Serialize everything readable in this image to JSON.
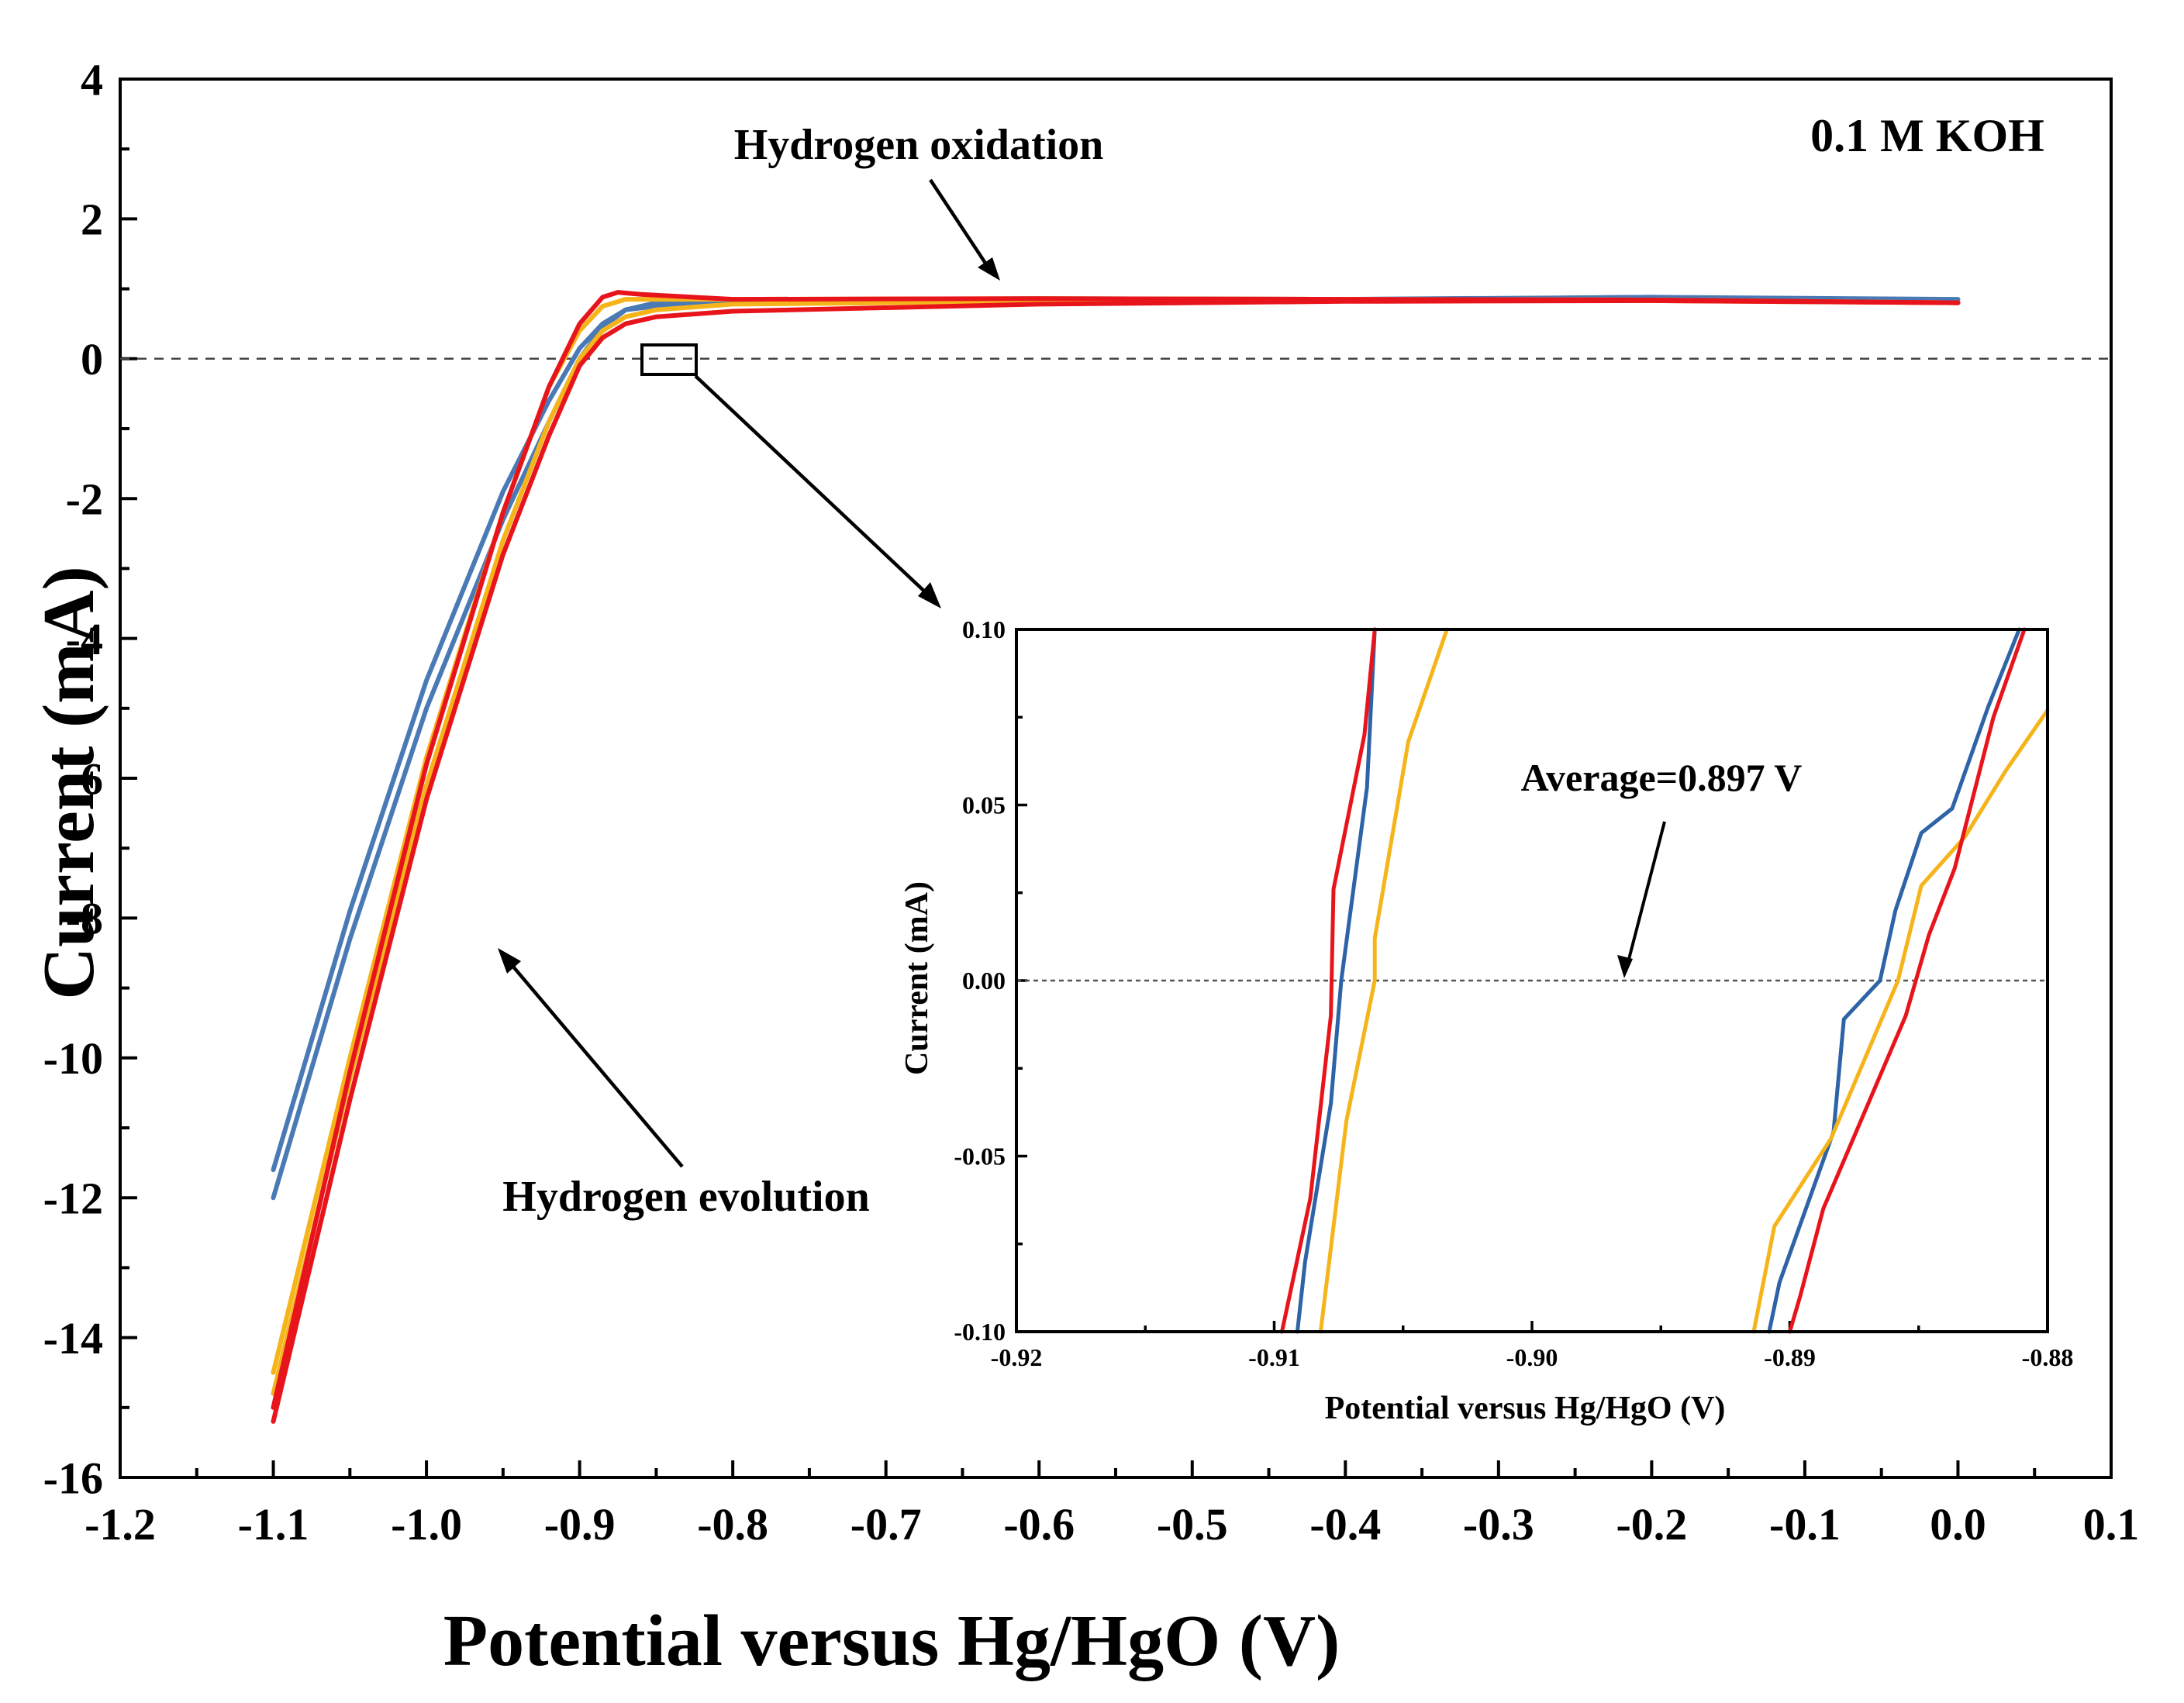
{
  "colors": {
    "blue": "#4a7ab5",
    "orange": "#f5b41a",
    "red": "#e8141c",
    "inset_blue": "#2e63a7",
    "axis": "#000000",
    "zero_line": "#444444"
  },
  "chart_data": [
    {
      "type": "line",
      "id": "main",
      "title": "",
      "xlabel": "Potential versus Hg/HgO (V)",
      "ylabel": "Current (mA)",
      "xlim": [
        -1.2,
        0.1
      ],
      "ylim": [
        -16,
        4
      ],
      "xticks": [
        -1.2,
        -1.1,
        -1.0,
        -0.9,
        -0.8,
        -0.7,
        -0.6,
        -0.5,
        -0.4,
        -0.3,
        -0.2,
        -0.1,
        0.0,
        0.1
      ],
      "xtick_labels": [
        "-1.2",
        "-1.1",
        "-1.0",
        "-0.9",
        "-0.8",
        "-0.7",
        "-0.6",
        "-0.5",
        "-0.4",
        "-0.3",
        "-0.2",
        "-0.1",
        "0.0",
        "0.1"
      ],
      "yticks": [
        4,
        2,
        0,
        -2,
        -4,
        -6,
        -8,
        -10,
        -12,
        -14,
        -16
      ],
      "ytick_labels": [
        "4",
        "2",
        "0",
        "-2",
        "-4",
        "-6",
        "-8",
        "-10",
        "-12",
        "-14",
        "-16"
      ],
      "zero_line": 0,
      "annotations": {
        "electrolyte": "0.1 M KOH",
        "oxidation": "Hydrogen oxidation",
        "evolution": "Hydrogen evolution"
      },
      "series": [
        {
          "name": "blue-forward",
          "color": "blue",
          "x": [
            -1.1,
            -1.05,
            -1.0,
            -0.95,
            -0.92,
            -0.9,
            -0.885,
            -0.87,
            -0.85,
            -0.8,
            -0.6,
            -0.4,
            -0.2,
            0.0
          ],
          "y": [
            -12.0,
            -8.3,
            -5.0,
            -2.3,
            -0.9,
            0.0,
            0.45,
            0.7,
            0.8,
            0.84,
            0.86,
            0.85,
            0.88,
            0.85
          ]
        },
        {
          "name": "blue-reverse",
          "color": "blue",
          "x": [
            -1.1,
            -1.05,
            -1.0,
            -0.95,
            -0.92,
            -0.9,
            -0.885,
            -0.87,
            -0.85,
            -0.8,
            -0.6,
            -0.4,
            -0.2,
            0.0
          ],
          "y": [
            -11.6,
            -7.9,
            -4.6,
            -1.9,
            -0.6,
            0.15,
            0.5,
            0.7,
            0.75,
            0.82,
            0.85,
            0.84,
            0.88,
            0.8
          ]
        },
        {
          "name": "orange-forward",
          "color": "orange",
          "x": [
            -1.1,
            -1.05,
            -1.0,
            -0.95,
            -0.92,
            -0.9,
            -0.885,
            -0.87,
            -0.85,
            -0.8,
            -0.6,
            -0.4,
            -0.2,
            0.0
          ],
          "y": [
            -14.8,
            -10.3,
            -6.1,
            -2.6,
            -0.9,
            0.0,
            0.4,
            0.6,
            0.7,
            0.78,
            0.82,
            0.84,
            0.83,
            0.8
          ]
        },
        {
          "name": "orange-reverse",
          "color": "orange",
          "x": [
            -1.1,
            -1.05,
            -1.0,
            -0.95,
            -0.92,
            -0.9,
            -0.885,
            -0.87,
            -0.85,
            -0.8,
            -0.6,
            -0.4,
            -0.2,
            0.0
          ],
          "y": [
            -14.5,
            -10.0,
            -5.7,
            -2.2,
            -0.4,
            0.4,
            0.75,
            0.85,
            0.85,
            0.85,
            0.86,
            0.85,
            0.84,
            0.8
          ]
        },
        {
          "name": "red-forward",
          "color": "red",
          "x": [
            -1.1,
            -1.05,
            -1.0,
            -0.95,
            -0.92,
            -0.9,
            -0.885,
            -0.87,
            -0.85,
            -0.8,
            -0.6,
            -0.4,
            -0.2,
            0.0
          ],
          "y": [
            -15.2,
            -10.6,
            -6.3,
            -2.8,
            -1.1,
            -0.1,
            0.3,
            0.5,
            0.6,
            0.68,
            0.78,
            0.82,
            0.83,
            0.8
          ]
        },
        {
          "name": "red-reverse",
          "color": "red",
          "x": [
            -1.1,
            -1.05,
            -1.0,
            -0.95,
            -0.92,
            -0.9,
            -0.885,
            -0.875,
            -0.86,
            -0.8,
            -0.6,
            -0.4,
            -0.2,
            0.0
          ],
          "y": [
            -15.0,
            -10.2,
            -5.8,
            -2.2,
            -0.4,
            0.5,
            0.88,
            0.95,
            0.92,
            0.85,
            0.86,
            0.85,
            0.84,
            0.8
          ]
        }
      ]
    },
    {
      "type": "line",
      "id": "inset",
      "title": "",
      "xlabel": "Potential versus Hg/HgO (V)",
      "ylabel": "Current (mA)",
      "xlim": [
        -0.92,
        -0.88
      ],
      "ylim": [
        -0.1,
        0.1
      ],
      "xticks": [
        -0.92,
        -0.91,
        -0.9,
        -0.89,
        -0.88
      ],
      "xtick_labels": [
        "-0.92",
        "-0.91",
        "-0.90",
        "-0.89",
        "-0.88"
      ],
      "yticks": [
        0.1,
        0.05,
        0.0,
        -0.05,
        -0.1
      ],
      "ytick_labels": [
        "0.10",
        "0.05",
        "0.00",
        "-0.05",
        "-0.10"
      ],
      "zero_line": 0,
      "annotations": {
        "average": "Average=0.897 V"
      },
      "series": [
        {
          "name": "blue-left",
          "color": "inset_blue",
          "x": [
            -0.9091,
            -0.9088,
            -0.9078,
            -0.9074,
            -0.9064,
            -0.9061
          ],
          "y": [
            -0.1,
            -0.08,
            -0.035,
            0.0,
            0.055,
            0.1
          ]
        },
        {
          "name": "red-left",
          "color": "red",
          "x": [
            -0.9097,
            -0.9086,
            -0.9078,
            -0.9077,
            -0.9065,
            -0.9061
          ],
          "y": [
            -0.1,
            -0.062,
            -0.01,
            0.026,
            0.07,
            0.1
          ]
        },
        {
          "name": "orange-left",
          "color": "orange",
          "x": [
            -0.9082,
            -0.9072,
            -0.9061,
            -0.9061,
            -0.9048,
            -0.9033
          ],
          "y": [
            -0.1,
            -0.04,
            0.0,
            0.012,
            0.068,
            0.1
          ]
        },
        {
          "name": "blue-right",
          "color": "inset_blue",
          "x": [
            -0.8908,
            -0.8904,
            -0.8883,
            -0.8879,
            -0.8865,
            -0.8859,
            -0.8849,
            -0.8837,
            -0.8823,
            -0.8811
          ],
          "y": [
            -0.1,
            -0.086,
            -0.043,
            -0.011,
            0.0,
            0.02,
            0.042,
            0.049,
            0.078,
            0.1
          ]
        },
        {
          "name": "orange-right",
          "color": "orange",
          "x": [
            -0.8914,
            -0.8906,
            -0.8884,
            -0.8858,
            -0.8849,
            -0.8832,
            -0.8816,
            -0.88
          ],
          "y": [
            -0.1,
            -0.07,
            -0.045,
            0.0,
            0.027,
            0.041,
            0.06,
            0.077
          ]
        },
        {
          "name": "red-right",
          "color": "red",
          "x": [
            -0.89,
            -0.8896,
            -0.8887,
            -0.8855,
            -0.8846,
            -0.8836,
            -0.8821,
            -0.8809
          ],
          "y": [
            -0.1,
            -0.09,
            -0.065,
            -0.01,
            0.013,
            0.032,
            0.075,
            0.1
          ]
        }
      ]
    }
  ]
}
